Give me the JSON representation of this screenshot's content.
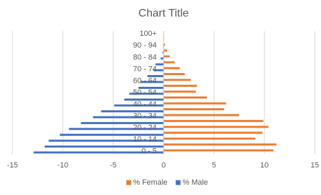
{
  "chart_data": {
    "type": "bar",
    "orientation": "horizontal",
    "title": "Chart Title",
    "categories": [
      "0 - 5",
      null,
      "10 - 14",
      null,
      "20 - 24",
      null,
      "30 - 34",
      null,
      "40 - 44",
      null,
      "50 - 54",
      null,
      "60 - 64",
      null,
      "70 - 74",
      null,
      "80 - 84",
      null,
      "90 - 94",
      null,
      "100+"
    ],
    "series": [
      {
        "name": "% Female",
        "color": "#ed7d31",
        "values": [
          10.9,
          11.2,
          9.1,
          9.8,
          10.4,
          9.9,
          7.5,
          6.0,
          6.2,
          4.3,
          3.2,
          3.3,
          2.7,
          2.1,
          1.6,
          1.1,
          0.6,
          0.35,
          0.15,
          0.05,
          0.02
        ]
      },
      {
        "name": "% Male",
        "color": "#4472c4",
        "values": [
          -12.9,
          -11.8,
          -11.4,
          -10.3,
          -9.4,
          -8.2,
          -7.0,
          -6.2,
          -4.9,
          -3.9,
          -3.4,
          -2.5,
          -2.3,
          -1.6,
          -1.0,
          -0.8,
          -0.3,
          -0.1,
          -0.05,
          0,
          0
        ]
      }
    ],
    "xlim": [
      -15,
      15
    ],
    "xticks": [
      -15,
      -10,
      -5,
      0,
      5,
      10,
      15
    ],
    "grid": true,
    "legend": "bottom"
  }
}
